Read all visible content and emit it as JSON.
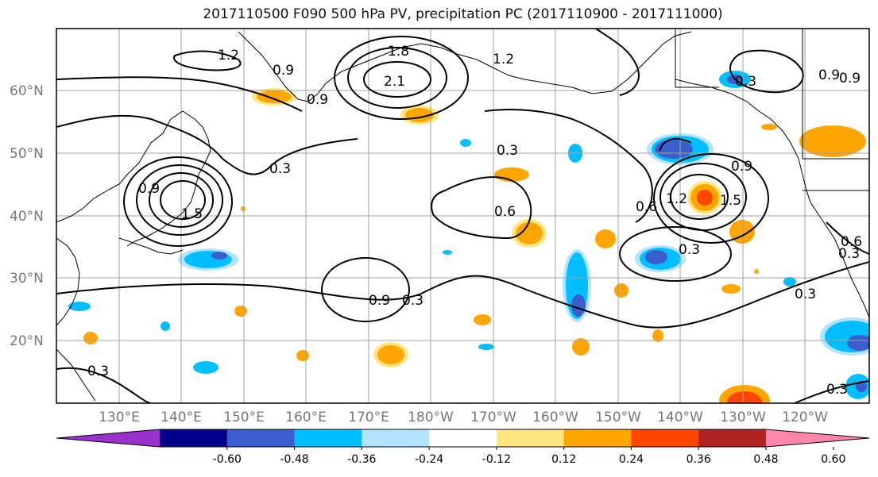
{
  "title": "2017110500 F090 500 hPa PV, precipitation PC (2017110900 - 2017111000)",
  "lat_labels": [
    "60°N",
    "50°N",
    "40°N",
    "30°N",
    "20°N"
  ],
  "lon_labels": [
    "130°E",
    "140°E",
    "150°E",
    "160°E",
    "170°E",
    "180°W",
    "170°W",
    "160°W",
    "150°W",
    "140°W",
    "130°W",
    "120°W"
  ],
  "colorbar": {
    "ticks": [
      "-0.60",
      "-0.48",
      "-0.36",
      "-0.24",
      "-0.12",
      "0.12",
      "0.24",
      "0.36",
      "0.48",
      "0.60"
    ],
    "colors": [
      "#9932cc",
      "#00008b",
      "#3a5fcd",
      "#00bfff",
      "#b2e4ff",
      "#ffffff",
      "#ffe680",
      "#ffa500",
      "#ff4500",
      "#b22222",
      "#ff88aa"
    ]
  },
  "contour_labels": [
    "1.2",
    "0.9",
    "1.8",
    "2.1",
    "1.2",
    "0.9",
    "0.9",
    "0.9",
    "0.9",
    "0.3",
    "0.3",
    "0.9",
    "1.5",
    "0.3",
    "0.6",
    "0.6",
    "1.2",
    "1.5",
    "0.9",
    "0.3",
    "0.3",
    "0.6",
    "0.3",
    "0.3",
    "0.3",
    "0.3"
  ]
}
